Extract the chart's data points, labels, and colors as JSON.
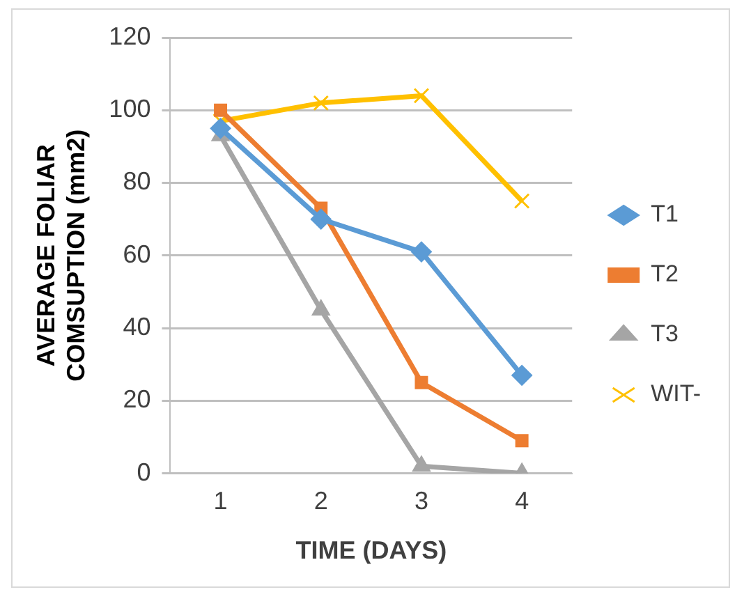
{
  "chart_data": {
    "type": "line",
    "xlabel": "TIME (DAYS)",
    "ylabel": "AVERAGE FOLIAR COMSUPTION (mm2)",
    "categories": [
      "1",
      "2",
      "3",
      "4"
    ],
    "series": [
      {
        "name": "T1",
        "color": "#5b9bd5",
        "marker": "diamond",
        "values": [
          95,
          70,
          61,
          27
        ]
      },
      {
        "name": "T2",
        "color": "#ed7d31",
        "marker": "square",
        "values": [
          100,
          73,
          25,
          9
        ]
      },
      {
        "name": "T3",
        "color": "#a5a5a5",
        "marker": "triangle",
        "values": [
          93,
          45,
          2,
          0
        ]
      },
      {
        "name": "WIT-",
        "color": "#ffc000",
        "marker": "cross",
        "values": [
          97,
          102,
          104,
          75
        ]
      }
    ],
    "ylim": [
      0,
      120
    ],
    "yticks": [
      0,
      20,
      40,
      60,
      80,
      100,
      120
    ],
    "grid": "y",
    "legend": "right"
  }
}
